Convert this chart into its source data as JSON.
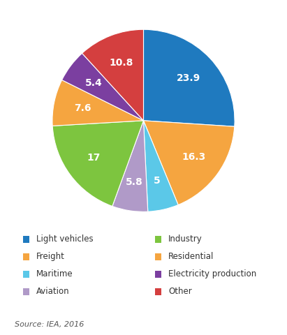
{
  "slices": [
    {
      "label": "Light vehicles",
      "value": 23.9,
      "color": "#1f7abf"
    },
    {
      "label": "Freight",
      "value": 16.3,
      "color": "#f5a540"
    },
    {
      "label": "Maritime",
      "value": 5.0,
      "color": "#5bc8e8"
    },
    {
      "label": "Aviation",
      "value": 5.8,
      "color": "#b09ac8"
    },
    {
      "label": "Industry",
      "value": 17.0,
      "color": "#7dc53f"
    },
    {
      "label": "Residential",
      "value": 7.6,
      "color": "#f5a540"
    },
    {
      "label": "Electricity production",
      "value": 5.4,
      "color": "#7b3fa0"
    },
    {
      "label": "Other",
      "value": 10.8,
      "color": "#d43f3f"
    }
  ],
  "legend_left": [
    "Light vehicles",
    "Freight",
    "Maritime",
    "Aviation"
  ],
  "legend_right": [
    "Industry",
    "Residential",
    "Electricity production",
    "Other"
  ],
  "source_text": "Source: IEA, 2016",
  "startangle": 90,
  "label_fontsize": 10,
  "legend_fontsize": 8.5,
  "source_fontsize": 8
}
